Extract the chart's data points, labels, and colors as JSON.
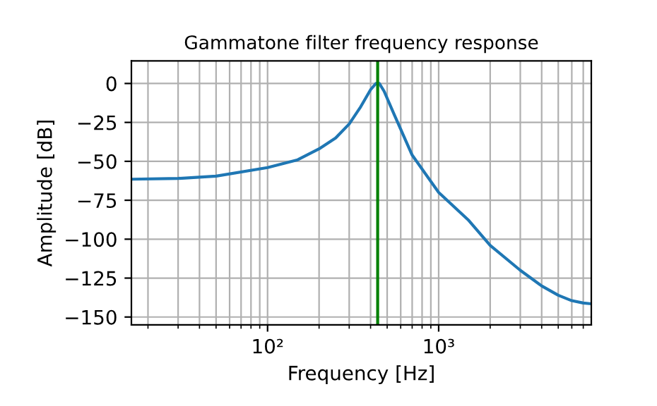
{
  "chart_data": {
    "type": "line",
    "title": "Gammatone filter frequency response",
    "xlabel": "Frequency [Hz]",
    "ylabel": "Amplitude [dB]",
    "log": "x",
    "grid": true,
    "xlim": [
      16,
      7800
    ],
    "ylim": [
      -155,
      14.5
    ],
    "xticks": [
      {
        "value": 100,
        "label": "10²"
      },
      {
        "value": 1000,
        "label": "10³"
      }
    ],
    "yticks": [
      -150,
      -125,
      -100,
      -75,
      -50,
      -25,
      0
    ],
    "series": [
      {
        "color": "#1f77b4",
        "x": [
          16,
          30,
          50,
          100,
          150,
          200,
          250,
          300,
          350,
          400,
          430,
          450,
          480,
          550,
          700,
          1000,
          1500,
          2000,
          3000,
          4000,
          5000,
          6000,
          7000,
          7800
        ],
        "values": [
          -61.5,
          -61,
          -59.5,
          -54,
          -49,
          -42,
          -35,
          -26,
          -15,
          -4,
          0,
          0,
          -5,
          -20,
          -46,
          -70,
          -88,
          -104,
          -120,
          -130,
          -136,
          -139.5,
          -141,
          -141.5
        ]
      }
    ],
    "ref_lines": [
      {
        "axis": "x",
        "value": 440,
        "color": "#008000"
      }
    ]
  }
}
